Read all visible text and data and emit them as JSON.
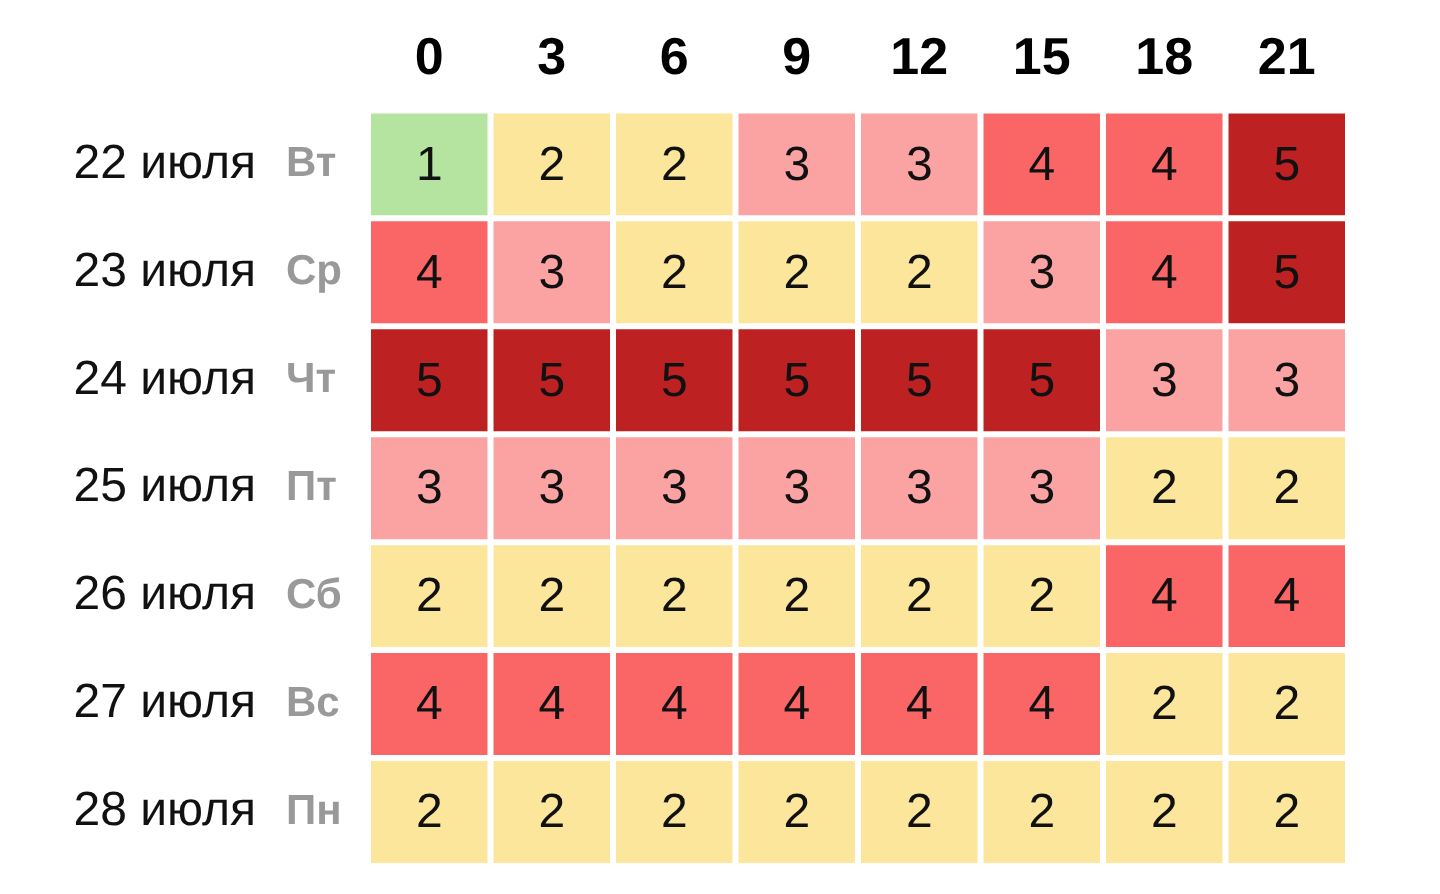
{
  "chart_data": {
    "type": "heatmap",
    "categories": [
      "0",
      "3",
      "6",
      "9",
      "12",
      "15",
      "18",
      "21"
    ],
    "y_categories": [
      "22 июля",
      "23 июля",
      "24 июля",
      "25 июля",
      "26 июля",
      "27 июля",
      "28 июля"
    ],
    "y2_categories": [
      "Вт",
      "Ср",
      "Чт",
      "Пт",
      "Сб",
      "Вс",
      "Пн"
    ],
    "cells": [
      [
        1,
        2,
        2,
        3,
        3,
        4,
        4,
        5
      ],
      [
        4,
        3,
        2,
        2,
        2,
        3,
        4,
        5
      ],
      [
        5,
        5,
        5,
        5,
        5,
        5,
        3,
        3
      ],
      [
        3,
        3,
        3,
        3,
        3,
        3,
        2,
        2
      ],
      [
        2,
        2,
        2,
        2,
        2,
        2,
        4,
        4
      ],
      [
        4,
        4,
        4,
        4,
        4,
        4,
        2,
        2
      ],
      [
        2,
        2,
        2,
        2,
        2,
        2,
        2,
        2
      ]
    ],
    "colors": [
      "#b5e4a0",
      "#fbe69c",
      "#fba3a3",
      "#fa6666",
      "#bd2121"
    ],
    "data_labels": true
  }
}
